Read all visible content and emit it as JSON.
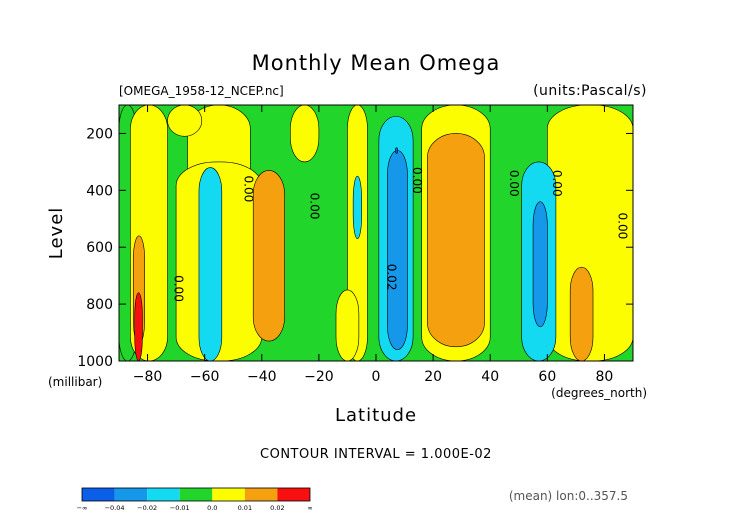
{
  "chart_data": {
    "type": "heatmap",
    "title": "Monthly Mean Omega",
    "file_label": "[OMEGA_1958-12_NCEP.nc]",
    "units_label": "(units:Pascal/s)",
    "xlabel": "Latitude",
    "x_unit_label": "(degrees_north)",
    "ylabel": "Level",
    "y_unit_label": "(millibar)",
    "xlim": [
      -90,
      90
    ],
    "ylim": [
      1000,
      100
    ],
    "x_ticks": [
      -80,
      -60,
      -40,
      -20,
      0,
      20,
      40,
      60,
      80
    ],
    "y_ticks": [
      200,
      400,
      600,
      800,
      1000
    ],
    "contour_interval_text": "CONTOUR INTERVAL = 1.000E-02",
    "mean_note": "(mean) lon:0..357.5",
    "contour_labels": [
      {
        "text": "0.00",
        "lat": -70.5,
        "level": 745
      },
      {
        "text": "0.00",
        "lat": -46,
        "level": 395
      },
      {
        "text": "0.00",
        "lat": -23,
        "level": 455
      },
      {
        "text": "0.00",
        "lat": 13,
        "level": 365
      },
      {
        "text": "0.02",
        "lat": 4,
        "level": 705
      },
      {
        "text": "0.00",
        "lat": 47,
        "level": 375
      },
      {
        "text": "0.00",
        "lat": 62,
        "level": 375
      },
      {
        "text": "0.00",
        "lat": 85,
        "level": 525
      }
    ],
    "colorbar": {
      "labels": [
        "-∞",
        "-0.04",
        "-0.02",
        "-0.01",
        "0.0",
        "0.01",
        "0.02",
        "∞"
      ],
      "colors": [
        "#0a5ee8",
        "#1597ea",
        "#13d9f1",
        "#22d52a",
        "#fdfd01",
        "#f4a00f",
        "#f81010"
      ]
    },
    "regions": [
      {
        "band": 3,
        "lat": [
          -90,
          -84
        ],
        "level": [
          100,
          1000
        ]
      },
      {
        "band": 4,
        "lat": [
          -86,
          -73
        ],
        "level": [
          100,
          1000
        ]
      },
      {
        "band": 5,
        "lat": [
          -85,
          -81
        ],
        "level": [
          560,
          940
        ]
      },
      {
        "band": 6,
        "lat": [
          -84.5,
          -81.8
        ],
        "level": [
          760,
          1000
        ]
      },
      {
        "band": 4,
        "lat": [
          -66,
          -44
        ],
        "level": [
          100,
          900
        ]
      },
      {
        "band": 4,
        "lat": [
          -70,
          -40
        ],
        "level": [
          300,
          1000
        ]
      },
      {
        "band": 2,
        "lat": [
          -62,
          -54
        ],
        "level": [
          320,
          1000
        ]
      },
      {
        "band": 5,
        "lat": [
          -43,
          -32
        ],
        "level": [
          330,
          930
        ]
      },
      {
        "band": 4,
        "lat": [
          -30,
          -20
        ],
        "level": [
          100,
          300
        ]
      },
      {
        "band": 4,
        "lat": [
          -10,
          -3
        ],
        "level": [
          100,
          1000
        ]
      },
      {
        "band": 4,
        "lat": [
          -14,
          -6
        ],
        "level": [
          750,
          1000
        ]
      },
      {
        "band": 2,
        "lat": [
          -8,
          -5
        ],
        "level": [
          350,
          570
        ]
      },
      {
        "band": 2,
        "lat": [
          1,
          13
        ],
        "level": [
          140,
          1000
        ]
      },
      {
        "band": 1,
        "lat": [
          4,
          11
        ],
        "level": [
          260,
          960
        ]
      },
      {
        "band": 0,
        "lat": [
          6.8,
          7.6
        ],
        "level": [
          250,
          270
        ]
      },
      {
        "band": 4,
        "lat": [
          16,
          40
        ],
        "level": [
          100,
          1000
        ]
      },
      {
        "band": 5,
        "lat": [
          18,
          38
        ],
        "level": [
          200,
          950
        ]
      },
      {
        "band": 4,
        "lat": [
          60,
          90
        ],
        "level": [
          100,
          1000
        ]
      },
      {
        "band": 2,
        "lat": [
          51,
          63
        ],
        "level": [
          300,
          1000
        ]
      },
      {
        "band": 1,
        "lat": [
          55,
          60
        ],
        "level": [
          440,
          880
        ]
      },
      {
        "band": 5,
        "lat": [
          68,
          76
        ],
        "level": [
          670,
          1000
        ]
      },
      {
        "band": 4,
        "lat": [
          -73,
          -61
        ],
        "level": [
          100,
          210
        ]
      }
    ]
  }
}
